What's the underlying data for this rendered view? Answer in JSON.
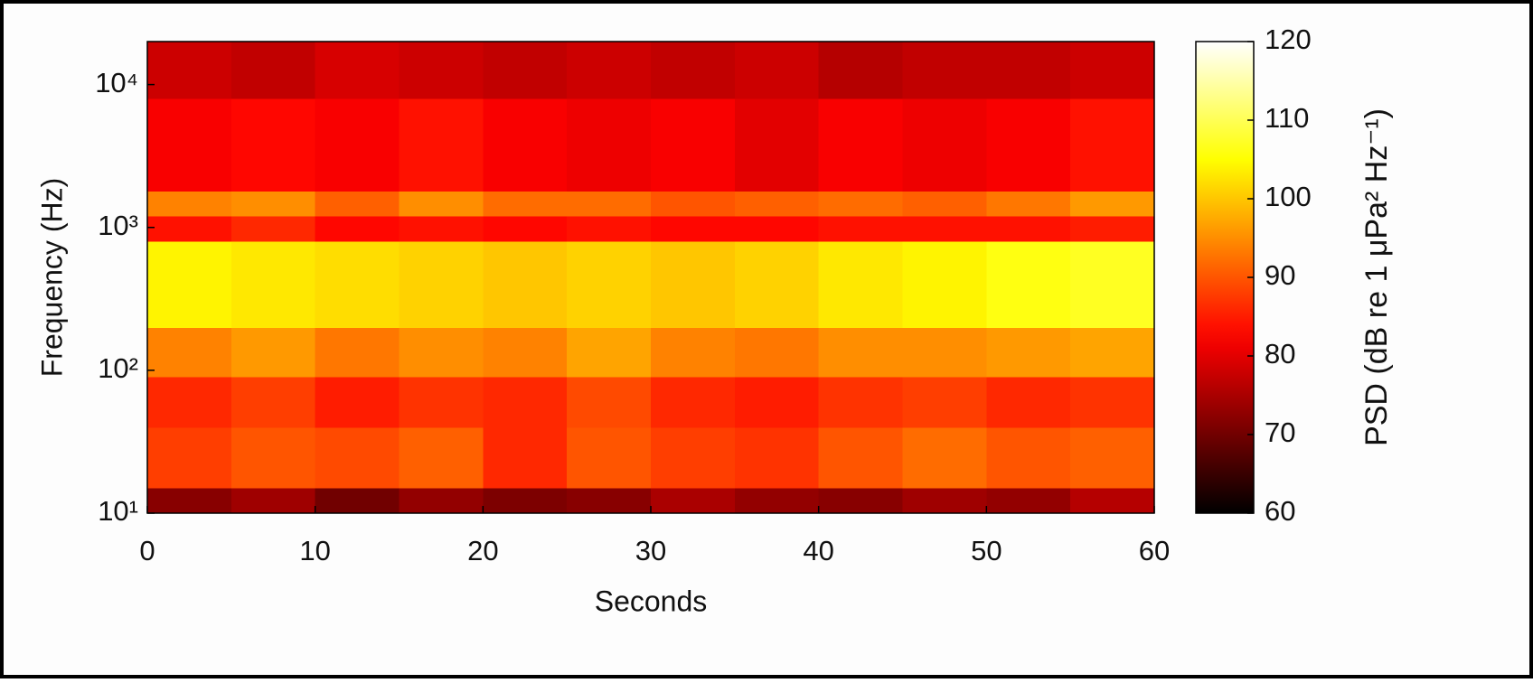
{
  "chart_data": {
    "type": "heatmap",
    "x_label": "Seconds",
    "y_label": "Frequency (Hz)",
    "colorbar_label": "PSD (dB re 1 μPa² Hz⁻¹)",
    "colormap": "hot",
    "y_scale": "log",
    "xlim": [
      0,
      60
    ],
    "xticks": [
      0,
      10,
      20,
      30,
      40,
      50,
      60
    ],
    "ylim": [
      10,
      20000
    ],
    "yticks": [
      {
        "value": 10,
        "label": "10¹"
      },
      {
        "value": 100,
        "label": "10²"
      },
      {
        "value": 1000,
        "label": "10³"
      },
      {
        "value": 10000,
        "label": "10⁴"
      }
    ],
    "clim": [
      60,
      120
    ],
    "cticks": [
      60,
      70,
      80,
      90,
      100,
      110,
      120
    ],
    "x_edges": [
      0,
      5,
      10,
      15,
      20,
      25,
      30,
      35,
      40,
      45,
      50,
      55,
      60
    ],
    "y_edges": [
      10,
      15,
      40,
      90,
      200,
      800,
      1200,
      1800,
      8000,
      20000
    ],
    "z": [
      [
        72,
        74,
        70,
        73,
        71,
        72,
        75,
        73,
        72,
        74,
        73,
        76
      ],
      [
        88,
        90,
        89,
        91,
        86,
        90,
        88,
        87,
        90,
        92,
        90,
        91
      ],
      [
        86,
        88,
        85,
        87,
        86,
        89,
        86,
        85,
        87,
        88,
        86,
        87
      ],
      [
        94,
        96,
        93,
        95,
        94,
        97,
        94,
        93,
        95,
        95,
        96,
        97
      ],
      [
        104,
        103,
        102,
        101,
        100,
        101,
        100,
        101,
        103,
        104,
        106,
        107
      ],
      [
        84,
        86,
        83,
        84,
        83,
        84,
        83,
        83,
        84,
        84,
        84,
        85
      ],
      [
        94,
        95,
        91,
        95,
        92,
        92,
        90,
        91,
        92,
        91,
        93,
        96
      ],
      [
        82,
        83,
        82,
        84,
        82,
        81,
        82,
        80,
        82,
        81,
        82,
        84
      ],
      [
        78,
        77,
        79,
        78,
        77,
        78,
        77,
        78,
        76,
        77,
        77,
        78
      ]
    ]
  }
}
